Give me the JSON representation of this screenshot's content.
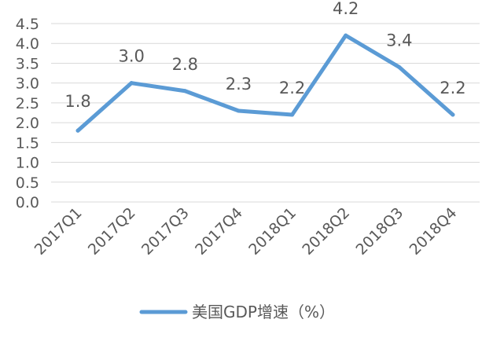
{
  "chart_data": {
    "type": "line",
    "title": "",
    "xlabel": "",
    "ylabel": "",
    "categories": [
      "2017Q1",
      "2017Q2",
      "2017Q3",
      "2017Q4",
      "2018Q1",
      "2018Q2",
      "2018Q3",
      "2018Q4"
    ],
    "series": [
      {
        "name": "美国GDP增速（%）",
        "values": [
          1.8,
          3.0,
          2.8,
          2.3,
          2.2,
          4.2,
          3.4,
          2.2
        ],
        "data_labels": [
          "1.8",
          "3.0",
          "2.8",
          "2.3",
          "2.2",
          "4.2",
          "3.4",
          "2.2"
        ],
        "color": "#5B9BD5"
      }
    ],
    "ylim": [
      0,
      4.5
    ],
    "yticks": [
      "0.0",
      "0.5",
      "1.0",
      "1.5",
      "2.0",
      "2.5",
      "3.0",
      "3.5",
      "4.0",
      "4.5"
    ],
    "grid": true,
    "gridline_color": "#d9d9d9",
    "legend_position": "bottom"
  }
}
